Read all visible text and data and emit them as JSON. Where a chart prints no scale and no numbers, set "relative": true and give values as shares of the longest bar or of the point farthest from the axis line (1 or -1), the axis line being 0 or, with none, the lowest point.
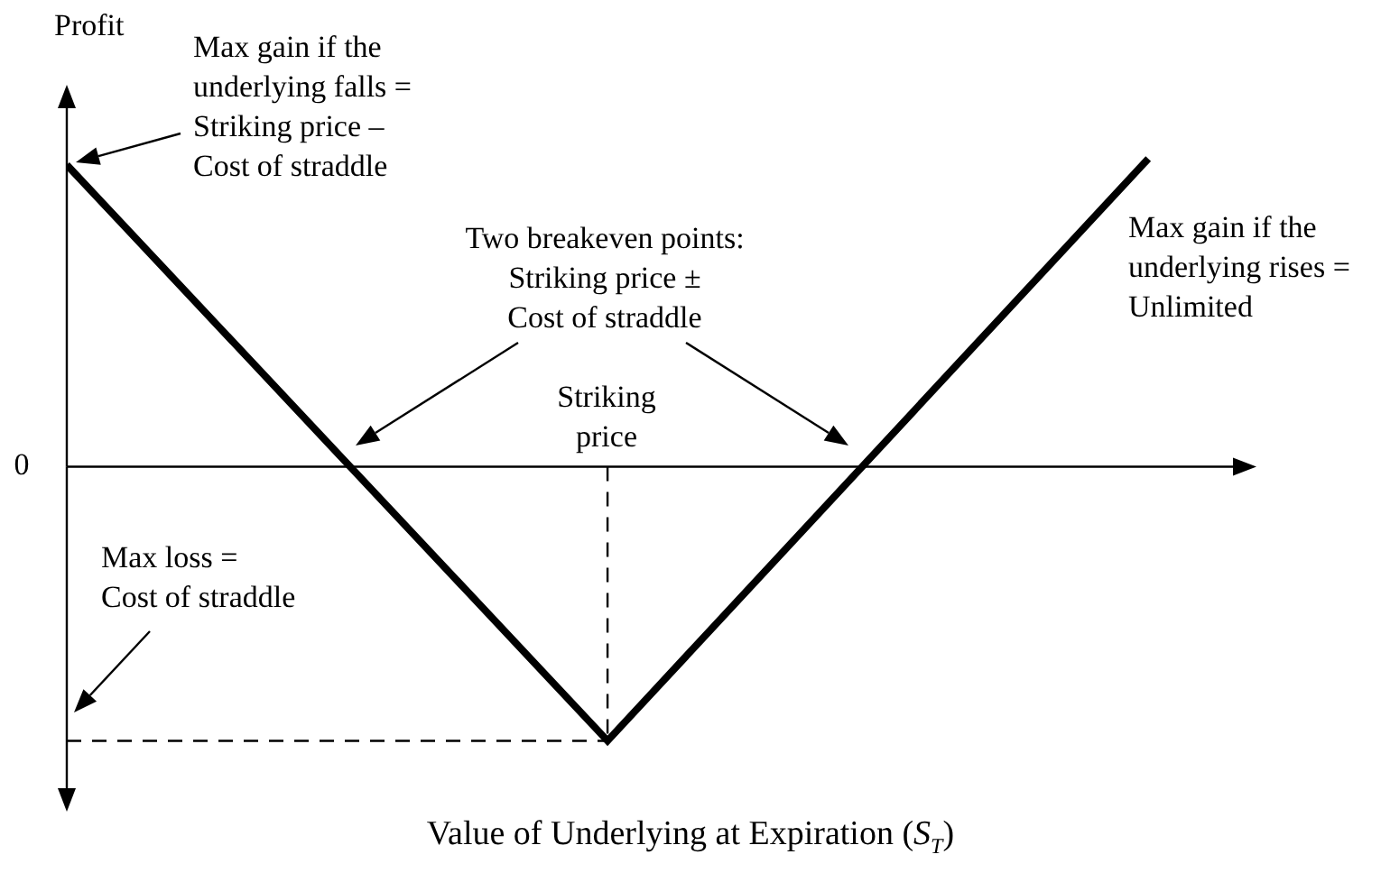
{
  "chart_data": {
    "type": "line",
    "relative": true,
    "ylabel": "Profit",
    "xlabel": "Value of Underlying at Expiration (S$_{T}$)",
    "categories": [
      null,
      null,
      null
    ],
    "series": [
      {
        "color": "#000000",
        "values": [
          0.98,
          -0.89,
          1
        ]
      }
    ],
    "marker": "none",
    "legend": false,
    "annotations": [
      "Max gain if the\nunderlying falls =\nStriking price –\nCost of straddle",
      "Two breakeven points:\nStriking price ±\nCost of straddle",
      "Striking\nprice",
      "Max gain if the\nunderlying rises =\nUnlimited",
      "Max loss =\nCost of straddle",
      "0"
    ]
  }
}
